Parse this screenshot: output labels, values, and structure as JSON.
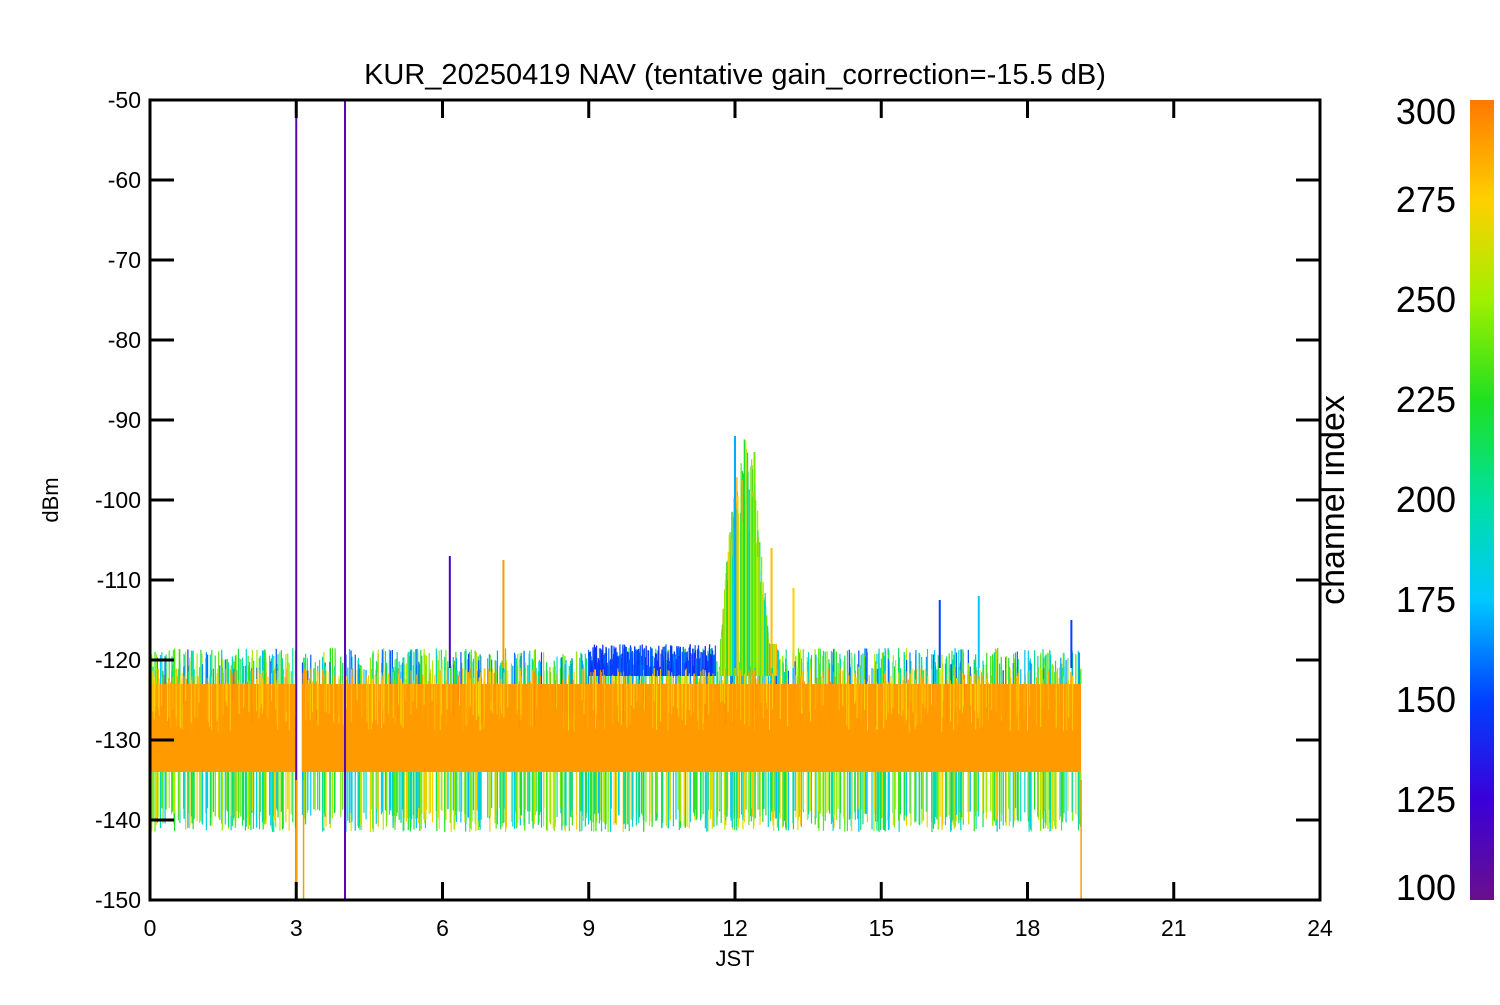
{
  "chart_data": {
    "type": "scatter",
    "title": "KUR_20250419 NAV (tentative gain_correction=-15.5 dB)",
    "xlabel": "JST",
    "ylabel": "dBm",
    "xlim": [
      0,
      24
    ],
    "ylim": [
      -150,
      -50
    ],
    "x_ticks": [
      0,
      3,
      6,
      9,
      12,
      15,
      18,
      21,
      24
    ],
    "x_tick_labels": [
      "0",
      "3",
      "6",
      "9",
      "12",
      "15",
      "18",
      "21",
      "24"
    ],
    "y_ticks": [
      -50,
      -60,
      -70,
      -80,
      -90,
      -100,
      -110,
      -120,
      -130,
      -140,
      -150
    ],
    "y_tick_labels": [
      "-50",
      "-60",
      "-70",
      "-80",
      "-90",
      "-100",
      "-110",
      "-120",
      "-130",
      "-140",
      "-150"
    ],
    "grid": false,
    "colorbar": {
      "label": "channel index",
      "range": [
        100,
        300
      ],
      "ticks": [
        300,
        275,
        250,
        225,
        200,
        175,
        150,
        125,
        100
      ],
      "tick_labels": [
        "300",
        "275",
        "250",
        "225",
        "200",
        "175",
        "150",
        "125",
        "100"
      ],
      "colormap": "rainbow"
    },
    "data_time_range": [
      0,
      19.1
    ],
    "noise_floor": {
      "core_dbm": [
        -134,
        -123
      ],
      "envelope_dbm": [
        -140,
        -120
      ],
      "dominant_channel": 290
    },
    "data_gap": {
      "x": 3.05
    },
    "series": [
      {
        "x": [
          3.0,
          3.0
        ],
        "y": [
          -150,
          -50
        ],
        "channel": 110
      },
      {
        "x": [
          4.0,
          4.0
        ],
        "y": [
          -150,
          -50
        ],
        "channel": 110
      },
      {
        "x": [
          6.15,
          6.15
        ],
        "y": [
          -121,
          -107
        ],
        "channel": 120
      },
      {
        "x": [
          7.25,
          7.25
        ],
        "y": [
          -121,
          -107.5
        ],
        "channel": 290
      },
      {
        "x": [
          12.0
        ],
        "y": [
          -92
        ],
        "channel": 170
      },
      {
        "x": [
          12.4
        ],
        "y": [
          -94
        ],
        "channel": 240
      },
      {
        "x": [
          12.75
        ],
        "y": [
          -106
        ],
        "channel": 280
      },
      {
        "x": [
          13.2
        ],
        "y": [
          -111
        ],
        "channel": 275
      },
      {
        "x": [
          16.2
        ],
        "y": [
          -112.5
        ],
        "channel": 150
      },
      {
        "x": [
          17.0
        ],
        "y": [
          -112
        ],
        "channel": 175
      },
      {
        "x": [
          18.9
        ],
        "y": [
          -115
        ],
        "channel": 150
      }
    ],
    "broadband_bursts": [
      {
        "x_range": [
          9.0,
          11.6
        ],
        "peak_dbm": -118,
        "channel": 140
      },
      {
        "x_range": [
          11.7,
          12.85
        ],
        "peak_dbm": -92,
        "channel": 240
      }
    ]
  }
}
